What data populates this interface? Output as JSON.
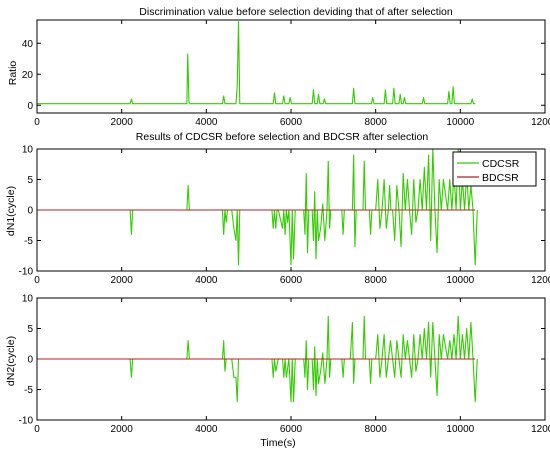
{
  "chart_data": [
    {
      "type": "line",
      "title": "Discrimination value before selection deviding that of after selection",
      "xlabel": "",
      "ylabel": "Ratio",
      "xlim": [
        0,
        12000
      ],
      "ylim": [
        -5,
        55
      ],
      "xticks": [
        "0",
        "2000",
        "4000",
        "6000",
        "8000",
        "10000",
        "12000"
      ],
      "yticks": [
        "0",
        "20",
        "40"
      ],
      "legend": null,
      "series": [
        {
          "color": "#33cc00",
          "x": [
            0,
            2200,
            2230,
            2260,
            3540,
            3560,
            3590,
            3620,
            4380,
            4410,
            4440,
            4700,
            4730,
            4760,
            4790,
            5580,
            5610,
            5640,
            5800,
            5830,
            5860,
            5950,
            5980,
            6010,
            6500,
            6530,
            6560,
            6620,
            6650,
            6680,
            6760,
            6790,
            6820,
            7450,
            7480,
            7510,
            7900,
            7930,
            7960,
            8200,
            8230,
            8260,
            8400,
            8430,
            8460,
            8550,
            8580,
            8610,
            8650,
            8680,
            8710,
            9100,
            9130,
            9160,
            9700,
            9730,
            9760,
            9800,
            9830,
            9860,
            10250,
            10280,
            10310,
            10350
          ],
          "y": [
            1,
            1,
            4,
            1,
            1,
            33,
            2,
            1,
            1,
            6,
            1,
            1,
            13,
            54,
            1,
            1,
            8,
            1,
            1,
            6,
            1,
            1,
            5,
            1,
            1,
            10,
            1,
            1,
            7,
            1,
            1,
            4,
            1,
            1,
            11,
            1,
            1,
            5,
            1,
            1,
            10,
            1,
            1,
            11,
            1,
            1,
            7,
            1,
            1,
            5,
            1,
            1,
            5,
            1,
            1,
            9,
            1,
            1,
            12,
            1,
            1,
            4,
            1,
            1
          ]
        }
      ]
    },
    {
      "type": "line",
      "title": "Results of CDCSR before selection and BDCSR after selection",
      "xlabel": "",
      "ylabel": "dN1(cycle)",
      "xlim": [
        0,
        12000
      ],
      "ylim": [
        -10,
        10
      ],
      "xticks": [
        "0",
        "2000",
        "4000",
        "6000",
        "8000",
        "10000",
        "12000"
      ],
      "yticks": [
        "-10",
        "-5",
        "0",
        "5",
        "10"
      ],
      "legend": "top-right",
      "series": [
        {
          "name": "CDCSR",
          "color": "#33cc00",
          "x": [
            0,
            2200,
            2230,
            2260,
            3540,
            3570,
            3600,
            4380,
            4410,
            4440,
            4470,
            4500,
            4600,
            4650,
            4700,
            4730,
            4760,
            4790,
            5550,
            5580,
            5610,
            5640,
            5670,
            5700,
            5800,
            5830,
            5860,
            5890,
            5920,
            5950,
            6000,
            6030,
            6060,
            6100,
            6150,
            6200,
            6300,
            6330,
            6360,
            6390,
            6420,
            6500,
            6530,
            6560,
            6590,
            6620,
            6650,
            6700,
            6750,
            6800,
            6850,
            6880,
            6910,
            6940,
            7200,
            7230,
            7260,
            7400,
            7450,
            7480,
            7510,
            7540,
            7700,
            7730,
            7760,
            7800,
            7850,
            7880,
            7910,
            8000,
            8050,
            8100,
            8150,
            8200,
            8250,
            8300,
            8330,
            8360,
            8400,
            8450,
            8500,
            8550,
            8600,
            8650,
            8700,
            8750,
            8800,
            8850,
            8900,
            8950,
            9000,
            9050,
            9100,
            9150,
            9200,
            9250,
            9300,
            9350,
            9400,
            9450,
            9500,
            9550,
            9600,
            9700,
            9750,
            9800,
            9850,
            9900,
            9950,
            10000,
            10050,
            10100,
            10150,
            10200,
            10250,
            10300,
            10350,
            10400
          ],
          "y": [
            0,
            0,
            -4,
            0,
            0,
            4,
            0,
            0,
            -4,
            0,
            -2,
            0,
            0,
            -3,
            -5,
            0,
            -9,
            0,
            0,
            -3,
            0,
            -3,
            0,
            0,
            -3,
            0,
            -4,
            0,
            -2,
            0,
            -9,
            0,
            -8,
            0,
            0,
            0,
            0,
            -4,
            6,
            -7,
            0,
            0,
            -5,
            3,
            -8,
            0,
            -5,
            -3,
            1,
            -5,
            0,
            8,
            -3,
            0,
            0,
            -4,
            0,
            0,
            0,
            9,
            -6,
            0,
            0,
            8,
            0,
            0,
            0,
            -4,
            0,
            0,
            5,
            -3,
            0,
            5,
            -3,
            0,
            4,
            0,
            0,
            -5,
            4,
            0,
            -6,
            6,
            0,
            5,
            0,
            -4,
            5,
            -2,
            0,
            5,
            0,
            7,
            0,
            9,
            -5,
            10,
            0,
            -7,
            5,
            0,
            5,
            0,
            5,
            0,
            6,
            0,
            10,
            0,
            5,
            0,
            6,
            0,
            4,
            0,
            -9,
            0
          ]
        },
        {
          "name": "BDCSR",
          "color": "#b22222",
          "x": [
            0,
            10350
          ],
          "y": [
            0,
            0
          ]
        }
      ]
    },
    {
      "type": "line",
      "title": "",
      "xlabel": "Time(s)",
      "ylabel": "dN2(cycle)",
      "xlim": [
        0,
        12000
      ],
      "ylim": [
        -10,
        10
      ],
      "xticks": [
        "0",
        "2000",
        "4000",
        "6000",
        "8000",
        "10000",
        "12000"
      ],
      "yticks": [
        "-10",
        "-5",
        "0",
        "5",
        "10"
      ],
      "legend": null,
      "series": [
        {
          "color": "#33cc00",
          "x": [
            0,
            2200,
            2230,
            2260,
            3540,
            3570,
            3600,
            4380,
            4410,
            4440,
            4470,
            4500,
            4600,
            4650,
            4700,
            4730,
            4760,
            5550,
            5580,
            5610,
            5640,
            5700,
            5800,
            5830,
            5860,
            5890,
            5950,
            6000,
            6030,
            6060,
            6100,
            6200,
            6300,
            6330,
            6360,
            6390,
            6420,
            6500,
            6530,
            6560,
            6590,
            6620,
            6650,
            6700,
            6750,
            6800,
            6850,
            6880,
            6910,
            6940,
            7200,
            7230,
            7260,
            7400,
            7450,
            7480,
            7510,
            7700,
            7730,
            7760,
            7800,
            7850,
            7880,
            7910,
            8000,
            8050,
            8100,
            8150,
            8200,
            8250,
            8300,
            8350,
            8400,
            8450,
            8500,
            8550,
            8600,
            8650,
            8700,
            8750,
            8800,
            8850,
            8900,
            8950,
            9000,
            9050,
            9100,
            9150,
            9200,
            9250,
            9300,
            9350,
            9400,
            9450,
            9500,
            9550,
            9600,
            9700,
            9750,
            9800,
            9850,
            9900,
            9950,
            10000,
            10050,
            10100,
            10150,
            10200,
            10250,
            10300,
            10350,
            10400
          ],
          "y": [
            0,
            0,
            -3,
            0,
            0,
            3,
            0,
            0,
            3,
            -2,
            0,
            0,
            0,
            -3,
            -3,
            -7,
            0,
            0,
            -3,
            0,
            -2,
            0,
            0,
            -3,
            0,
            -3,
            0,
            -7,
            0,
            -7,
            0,
            0,
            0,
            -3,
            3,
            -5,
            0,
            0,
            -5,
            2,
            -6,
            0,
            -4,
            -2,
            1,
            -4,
            0,
            7,
            -3,
            0,
            0,
            -3,
            0,
            0,
            6,
            -4,
            0,
            0,
            7,
            0,
            0,
            0,
            -4,
            0,
            0,
            4,
            -3,
            0,
            4,
            -3,
            0,
            3,
            0,
            -3,
            3,
            0,
            -3,
            4,
            0,
            3,
            0,
            -3,
            4,
            -2,
            0,
            4,
            0,
            5,
            0,
            6,
            -3,
            6,
            0,
            -6,
            4,
            0,
            4,
            0,
            3,
            0,
            4,
            0,
            7,
            0,
            4,
            0,
            5,
            0,
            6,
            0,
            -7,
            0
          ]
        },
        {
          "color": "#b22222",
          "x": [
            0,
            10350
          ],
          "y": [
            0,
            0
          ]
        }
      ]
    }
  ]
}
